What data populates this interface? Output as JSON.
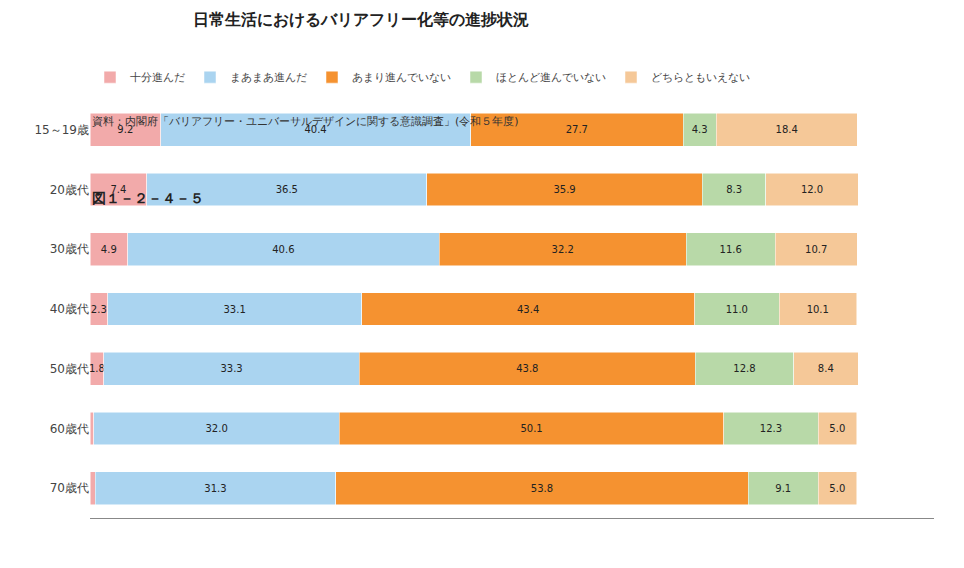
{
  "chart_data": {
    "type": "bar",
    "orientation": "horizontal",
    "stacked": true,
    "title": "日常生活におけるバリアフリー化等の進捗状況",
    "annotations": [
      "図１－２－４－５",
      "資料：内閣府「バリアフリー・ユニバーサルデザインに関する意識調査」(令和５年度)"
    ],
    "categories": [
      "15～19歳",
      "20歳代",
      "30歳代",
      "40歳代",
      "50歳代",
      "60歳代",
      "70歳代"
    ],
    "series": [
      {
        "name": "十分進んだ",
        "color": "#f2aaaa",
        "values": [
          9.2,
          7.4,
          4.9,
          2.3,
          1.8,
          0.5,
          0.7
        ],
        "value_labels": [
          "9.2",
          "7.4",
          "4.9",
          "2.3",
          "1.8",
          null,
          null
        ]
      },
      {
        "name": "まあまあ進んだ",
        "color": "#aad4f0",
        "values": [
          40.4,
          36.5,
          40.6,
          33.1,
          33.3,
          32.0,
          31.3
        ],
        "value_labels": [
          "40.4",
          "36.5",
          "40.6",
          "33.1",
          "33.3",
          "32.0",
          "31.3"
        ]
      },
      {
        "name": "あまり進んでいない",
        "color": "#f59230",
        "values": [
          27.7,
          35.9,
          32.2,
          43.4,
          43.8,
          50.1,
          53.8
        ],
        "value_labels": [
          "27.7",
          "35.9",
          "32.2",
          "43.4",
          "43.8",
          "50.1",
          "53.8"
        ]
      },
      {
        "name": "ほとんど進んでいない",
        "color": "#b8d9a8",
        "values": [
          4.3,
          8.3,
          11.6,
          11.0,
          12.8,
          12.3,
          9.1
        ],
        "value_labels": [
          "4.3",
          "8.3",
          "11.6",
          "11.0",
          "12.8",
          "12.3",
          "9.1"
        ]
      },
      {
        "name": "どちらともいえない",
        "color": "#f5c898",
        "values": [
          18.4,
          12.0,
          10.7,
          10.1,
          8.4,
          5.0,
          5.0
        ],
        "value_labels": [
          "18.4",
          "12.0",
          "10.7",
          "10.1",
          "8.4",
          "5.0",
          "5.0"
        ]
      }
    ],
    "xlim": [
      0,
      110
    ],
    "data_labels": true,
    "tick_labels": "y",
    "grid": false,
    "legend": "top"
  }
}
